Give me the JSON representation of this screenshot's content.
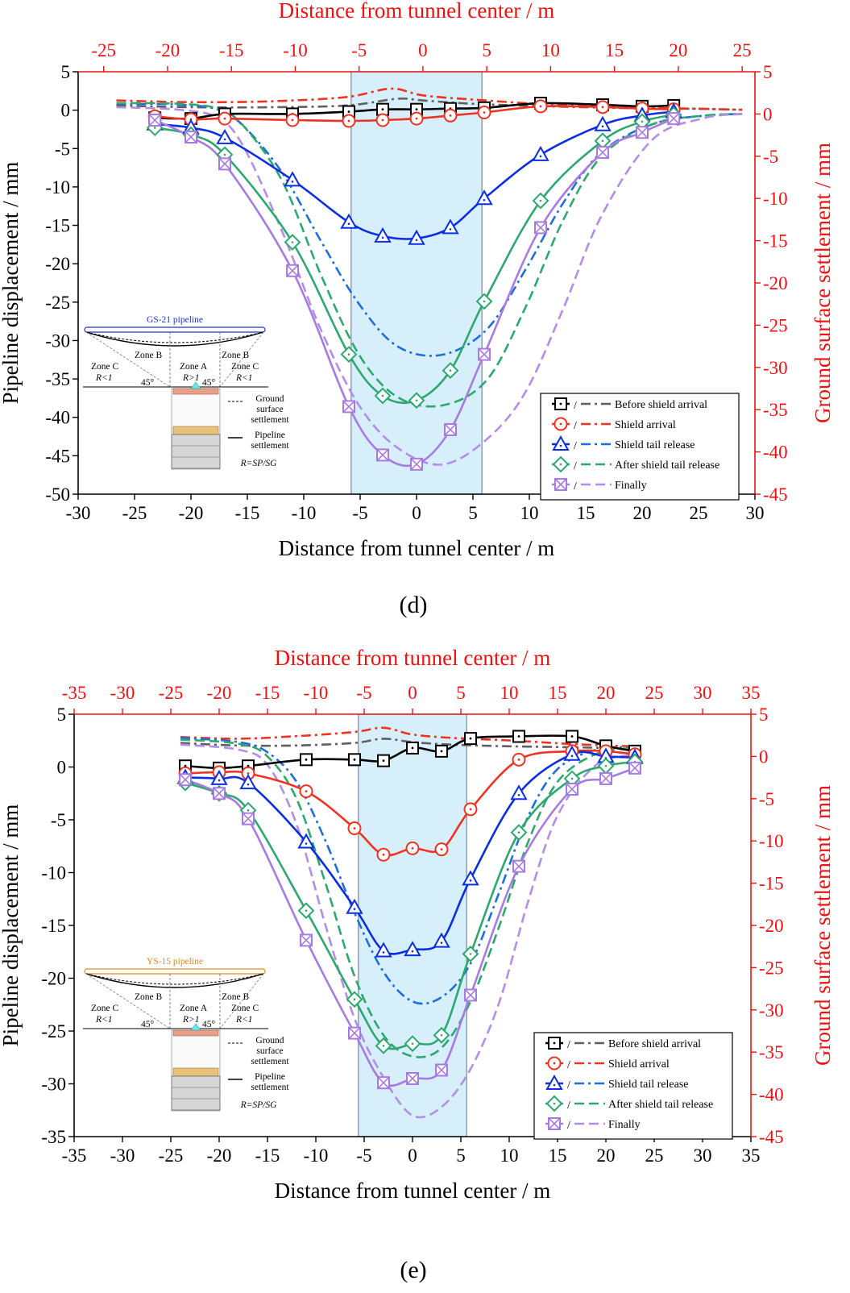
{
  "colors": {
    "before": "#000000",
    "arrival": "#ee3322",
    "tail": "#0a2ee0",
    "after": "#2ea86e",
    "finally": "#a77be0",
    "axis_red": "#ee1111",
    "band": "#d6effb",
    "surf_before": "#606060",
    "surf_arrival": "#ee3322",
    "surf_tail": "#1f6fd8",
    "surf_after": "#2ea86e",
    "surf_finally": "#b28ee6"
  },
  "panels": [
    {
      "label": "(d)",
      "inset_pipeline_label": "GS-21 pipeline",
      "inset_pipe_color": "#2233cc",
      "chart_data": {
        "type": "line",
        "title": "",
        "top_axis_title": "Distance from tunnel center / m",
        "xlabel": "Distance from tunnel center / m",
        "ylabel": "Pipeline displacement / mm",
        "y2label": "Ground surface settlement / mm",
        "xlim": [
          -30,
          30
        ],
        "x_ticks": [
          -30,
          -25,
          -20,
          -15,
          -10,
          -5,
          0,
          5,
          10,
          15,
          20,
          25,
          30
        ],
        "ylim": [
          -50,
          5
        ],
        "y_ticks": [
          5,
          0,
          -5,
          -10,
          -15,
          -20,
          -25,
          -30,
          -35,
          -40,
          -45,
          -50
        ],
        "x2lim": [
          -27,
          26
        ],
        "x2_ticks": [
          -25,
          -20,
          -15,
          -10,
          -5,
          0,
          5,
          10,
          15,
          20,
          25
        ],
        "y2lim": [
          -45,
          5
        ],
        "y2_ticks": [
          5,
          0,
          -5,
          -10,
          -15,
          -20,
          -25,
          -30,
          -35,
          -40,
          -45
        ],
        "band": [
          -5.8,
          5.8
        ],
        "pipeline_series": [
          {
            "key": "before",
            "name": "Before shield arrival",
            "marker": "square",
            "x": [
              -23.2,
              -20,
              -17,
              -11,
              -6,
              -3,
              0,
              3,
              6,
              11,
              16.5,
              20,
              22.8
            ],
            "y": [
              -1.0,
              -1.1,
              -0.5,
              -0.5,
              -0.2,
              0.1,
              0.1,
              0.2,
              0.3,
              0.9,
              0.7,
              0.5,
              0.6
            ]
          },
          {
            "key": "arrival",
            "name": "Shield arrival",
            "marker": "circle",
            "x": [
              -23.2,
              -20,
              -17,
              -11,
              -6,
              -3,
              0,
              3,
              6,
              11,
              16.5,
              20,
              22.8
            ],
            "y": [
              -0.8,
              -1.2,
              -1.1,
              -1.3,
              -1.4,
              -1.3,
              -1.1,
              -0.7,
              -0.3,
              0.5,
              0.4,
              0.2,
              0.1
            ]
          },
          {
            "key": "tail",
            "name": "Shield tail release",
            "marker": "triangle",
            "x": [
              -23.2,
              -20,
              -17,
              -11,
              -6,
              -3,
              0,
              3,
              6,
              11,
              16.5,
              20,
              22.8
            ],
            "y": [
              -1.8,
              -2.3,
              -3.6,
              -9.1,
              -14.6,
              -16.4,
              -16.7,
              -15.3,
              -11.5,
              -5.8,
              -1.9,
              -0.7,
              -0.2
            ]
          },
          {
            "key": "after",
            "name": "After shield tail release",
            "marker": "diamond",
            "x": [
              -23.2,
              -20,
              -17,
              -11,
              -6,
              -3,
              0,
              3,
              6,
              11,
              16.5,
              20,
              22.8
            ],
            "y": [
              -2.3,
              -3.2,
              -5.8,
              -17.2,
              -31.8,
              -37.2,
              -37.8,
              -33.9,
              -24.9,
              -11.8,
              -4.0,
              -1.5,
              -0.6
            ]
          },
          {
            "key": "finally",
            "name": "Finally",
            "marker": "crossbox",
            "x": [
              -23.2,
              -20,
              -17,
              -11,
              -6,
              -3,
              0,
              3,
              6,
              11,
              16.5,
              20,
              22.8
            ],
            "y": [
              -1.3,
              -3.5,
              -7.0,
              -20.9,
              -38.6,
              -44.9,
              -46.1,
              -41.6,
              -31.8,
              -15.3,
              -5.5,
              -2.9,
              -1.1
            ]
          }
        ],
        "surface_series": [
          {
            "key": "before",
            "name": "Before shield arrival",
            "x": [
              -24,
              -18,
              -12,
              -6,
              -2,
              0,
              4,
              10,
              16,
              22,
              25
            ],
            "y": [
              1.0,
              0.8,
              0.8,
              1.0,
              1.8,
              1.6,
              1.2,
              0.9,
              0.7,
              0.6,
              0.5
            ]
          },
          {
            "key": "arrival",
            "name": "Shield arrival",
            "x": [
              -24,
              -18,
              -12,
              -6,
              -2.5,
              0,
              4,
              10,
              16,
              22,
              25
            ],
            "y": [
              1.6,
              1.4,
              1.5,
              2.0,
              3.0,
              2.2,
              1.7,
              1.1,
              0.8,
              0.6,
              0.5
            ]
          },
          {
            "key": "tail",
            "name": "Shield tail release",
            "x": [
              -24,
              -19,
              -16,
              -14,
              -11,
              -8,
              -5,
              -2,
              1.5,
              5,
              8,
              11,
              14,
              18,
              22,
              25
            ],
            "y": [
              1.2,
              1.1,
              0.5,
              -1.5,
              -7,
              -15,
              -22.5,
              -27.5,
              -28.5,
              -25.5,
              -18.5,
              -10.5,
              -4.5,
              -1.2,
              -0.2,
              0
            ]
          },
          {
            "key": "after",
            "name": "After shield tail release",
            "x": [
              -24,
              -19,
              -16,
              -14,
              -11,
              -8,
              -5,
              -2,
              1.5,
              5,
              8,
              11,
              14,
              18,
              22,
              25
            ],
            "y": [
              1.3,
              1.2,
              0.6,
              -1.5,
              -8,
              -19,
              -28.5,
              -33.5,
              -34.5,
              -31.5,
              -23,
              -12.5,
              -5,
              -1.2,
              -0.2,
              0
            ]
          },
          {
            "key": "finally",
            "name": "Finally",
            "x": [
              -24,
              -19,
              -16,
              -14,
              -11,
              -8,
              -5,
              -2,
              1.5,
              5,
              8,
              11,
              14,
              18,
              22,
              25
            ],
            "y": [
              0.8,
              0.5,
              -0.5,
              -4,
              -14,
              -25.5,
              -34.5,
              -39.5,
              -41.5,
              -38.5,
              -33,
              -23,
              -12,
              -3,
              -0.5,
              0
            ]
          }
        ]
      }
    },
    {
      "label": "(e)",
      "inset_pipeline_label": "YS-15 pipeline",
      "inset_pipe_color": "#e08a22",
      "chart_data": {
        "type": "line",
        "title": "",
        "top_axis_title": "Distance from tunnel center / m",
        "xlabel": "Distance from tunnel center / m",
        "ylabel": "Pipeline displacement / mm",
        "y2label": "Ground surface settlement / mm",
        "xlim": [
          -35,
          35
        ],
        "x_ticks": [
          -35,
          -30,
          -25,
          -20,
          -15,
          -10,
          -5,
          0,
          5,
          10,
          15,
          20,
          25,
          30,
          35
        ],
        "ylim": [
          -35,
          5
        ],
        "y_ticks": [
          5,
          0,
          -5,
          -10,
          -15,
          -20,
          -25,
          -30,
          -35
        ],
        "x2lim": [
          -35,
          35
        ],
        "x2_ticks": [
          -35,
          -30,
          -25,
          -20,
          -15,
          -10,
          -5,
          0,
          5,
          10,
          15,
          20,
          25,
          30,
          35
        ],
        "y2lim": [
          -45,
          5
        ],
        "y2_ticks": [
          5,
          0,
          -5,
          -10,
          -15,
          -20,
          -25,
          -30,
          -35,
          -40,
          -45
        ],
        "band": [
          -5.6,
          5.6
        ],
        "pipeline_series": [
          {
            "key": "before",
            "name": "Before shield arrival",
            "marker": "square",
            "x": [
              -23.5,
              -20,
              -17,
              -11,
              -6,
              -3,
              0,
              3,
              6,
              11,
              16.5,
              20,
              23
            ],
            "y": [
              0.1,
              -0.1,
              0.1,
              0.7,
              0.7,
              0.6,
              1.8,
              1.5,
              2.7,
              2.9,
              2.9,
              2.0,
              1.5
            ]
          },
          {
            "key": "arrival",
            "name": "Shield arrival",
            "marker": "circle",
            "x": [
              -23.5,
              -20,
              -17,
              -11,
              -6,
              -3,
              0,
              3,
              6,
              11,
              16.5,
              20,
              23
            ],
            "y": [
              -0.6,
              -0.5,
              -0.6,
              -2.3,
              -5.8,
              -8.3,
              -7.7,
              -7.8,
              -4.0,
              0.7,
              1.5,
              1.5,
              1.2
            ]
          },
          {
            "key": "tail",
            "name": "Shield tail release",
            "marker": "triangle",
            "x": [
              -23.5,
              -20,
              -17,
              -11,
              -6,
              -3,
              0,
              3,
              6,
              11,
              16.5,
              20,
              23
            ],
            "y": [
              -1.0,
              -1.1,
              -1.5,
              -7.1,
              -13.3,
              -17.4,
              -17.3,
              -16.5,
              -10.6,
              -2.5,
              1.2,
              1.0,
              0.9
            ]
          },
          {
            "key": "after",
            "name": "After shield tail release",
            "marker": "diamond",
            "x": [
              -23.5,
              -20,
              -17,
              -11,
              -6,
              -3,
              0,
              3,
              6,
              11,
              16.5,
              20,
              23
            ],
            "y": [
              -1.5,
              -2.5,
              -4.1,
              -13.6,
              -22.0,
              -26.4,
              -26.2,
              -25.4,
              -17.7,
              -6.2,
              -1.1,
              0.1,
              0.5
            ]
          },
          {
            "key": "finally",
            "name": "Finally",
            "marker": "crossbox",
            "x": [
              -23.5,
              -20,
              -17,
              -11,
              -6,
              -3,
              0,
              3,
              6,
              11,
              16.5,
              20,
              23
            ],
            "y": [
              -1.2,
              -2.5,
              -4.9,
              -16.4,
              -25.2,
              -29.9,
              -29.5,
              -28.7,
              -21.6,
              -9.4,
              -2.1,
              -1.1,
              -0.1
            ]
          }
        ],
        "surface_series": [
          {
            "key": "before",
            "name": "Before shield arrival",
            "x": [
              -24,
              -18,
              -12,
              -6,
              -3,
              0,
              4,
              10,
              16,
              20,
              23
            ],
            "y": [
              1.6,
              1.3,
              1.3,
              1.6,
              2.1,
              1.7,
              1.4,
              1.2,
              1.1,
              1.0,
              0.9
            ]
          },
          {
            "key": "arrival",
            "name": "Shield arrival",
            "x": [
              -24,
              -18,
              -12,
              -6,
              -3,
              0,
              4,
              10,
              16,
              20,
              23
            ],
            "y": [
              2.3,
              2.1,
              2.4,
              2.9,
              3.4,
              2.6,
              2.2,
              1.9,
              1.5,
              1.3,
              1.2
            ]
          },
          {
            "key": "tail",
            "name": "Shield tail release",
            "x": [
              -24,
              -18,
              -15,
              -12,
              -9,
              -6,
              -3,
              0,
              3,
              6,
              9,
              12,
              15,
              19,
              23
            ],
            "y": [
              2.2,
              1.7,
              0.5,
              -3,
              -10,
              -18.5,
              -25.5,
              -29,
              -28.5,
              -24.5,
              -16,
              -7,
              -1.5,
              0.8,
              1.1
            ]
          },
          {
            "key": "after",
            "name": "After shield tail release",
            "x": [
              -24,
              -18,
              -15,
              -12,
              -9,
              -6,
              -3,
              0,
              3,
              6,
              9,
              12,
              15,
              19,
              23
            ],
            "y": [
              2.0,
              1.5,
              0,
              -5,
              -15,
              -26,
              -33,
              -35.5,
              -34.5,
              -29,
              -20,
              -10,
              -3,
              0.3,
              1.0
            ]
          },
          {
            "key": "finally",
            "name": "Finally",
            "x": [
              -24,
              -18,
              -15,
              -12,
              -9,
              -6,
              -3,
              0,
              3,
              6,
              9,
              12,
              15,
              19,
              23
            ],
            "y": [
              1.4,
              0.8,
              -1,
              -8,
              -20,
              -31,
              -38,
              -42.5,
              -41.5,
              -37,
              -29,
              -17,
              -7,
              -1,
              0.2
            ]
          }
        ]
      }
    }
  ],
  "inset_labels": {
    "zone_c": "Zone C",
    "zone_b": "Zone B",
    "zone_a": "Zone A",
    "r_lt": "R<1",
    "r_gt": "R>1",
    "angle": "45°",
    "ground_1": "Ground",
    "ground_2": "surface",
    "ground_3": "settlement",
    "pipe_1": "Pipeline",
    "pipe_2": "settlement",
    "ratio": "R=SP/SG"
  }
}
